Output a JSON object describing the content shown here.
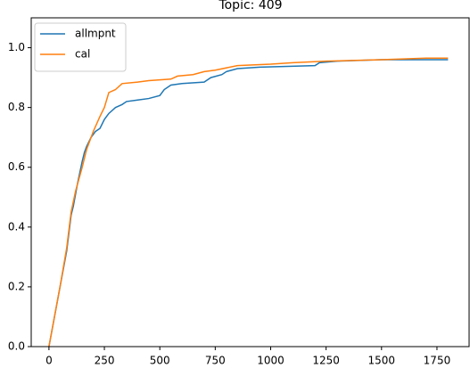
{
  "chart_data": {
    "type": "line",
    "title": "Topic: 409",
    "series": [
      {
        "name": "allmpnt",
        "color": "#1f77b4",
        "x": [
          0,
          20,
          50,
          80,
          100,
          110,
          130,
          150,
          160,
          170,
          190,
          210,
          230,
          250,
          270,
          300,
          330,
          350,
          400,
          450,
          500,
          520,
          550,
          600,
          700,
          730,
          780,
          800,
          850,
          950,
          1200,
          1220,
          1300,
          1500,
          1800
        ],
        "values": [
          0,
          0.08,
          0.2,
          0.32,
          0.44,
          0.47,
          0.55,
          0.62,
          0.65,
          0.67,
          0.7,
          0.72,
          0.73,
          0.76,
          0.78,
          0.8,
          0.81,
          0.82,
          0.825,
          0.83,
          0.84,
          0.86,
          0.875,
          0.88,
          0.885,
          0.9,
          0.91,
          0.92,
          0.93,
          0.935,
          0.94,
          0.95,
          0.955,
          0.96,
          0.96
        ]
      },
      {
        "name": "cal",
        "color": "#ff7f0e",
        "x": [
          0,
          20,
          50,
          80,
          100,
          120,
          150,
          170,
          200,
          230,
          250,
          270,
          300,
          330,
          400,
          450,
          550,
          580,
          650,
          700,
          750,
          850,
          1000,
          1100,
          1250,
          1500,
          1700,
          1800
        ],
        "values": [
          0,
          0.08,
          0.2,
          0.33,
          0.45,
          0.52,
          0.6,
          0.66,
          0.72,
          0.77,
          0.8,
          0.85,
          0.86,
          0.88,
          0.885,
          0.89,
          0.895,
          0.905,
          0.91,
          0.92,
          0.925,
          0.94,
          0.945,
          0.95,
          0.955,
          0.96,
          0.965,
          0.965
        ]
      }
    ],
    "xlim": [
      -80,
      1895
    ],
    "ylim": [
      0,
      1.1
    ],
    "xticks": [
      0,
      250,
      500,
      750,
      1000,
      1250,
      1500,
      1750
    ],
    "yticks": [
      {
        "value": 0,
        "label": "0.0"
      },
      0.2,
      0.4,
      0.6,
      0.8,
      {
        "value": 1,
        "label": "1.0"
      }
    ],
    "legend": "upper left"
  }
}
